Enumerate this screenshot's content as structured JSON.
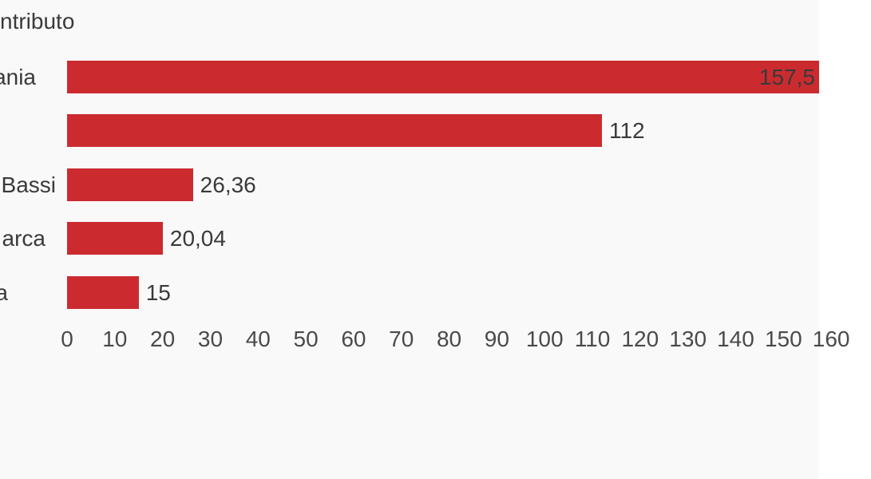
{
  "title": "ntributo",
  "colors": {
    "bar": "#cb2b2f",
    "background": "#f9f9f9",
    "text": "#3a3a3a",
    "tick_text": "#4a4a4a"
  },
  "chart_data": {
    "type": "bar",
    "orientation": "horizontal",
    "title": "ntributo",
    "categories": [
      "ania",
      "",
      "Bassi",
      "arca",
      "a"
    ],
    "values": [
      157.5,
      112,
      26.36,
      20.04,
      15
    ],
    "value_labels": [
      "157,5",
      "112",
      "26,36",
      "20,04",
      "15"
    ],
    "x_ticks": [
      0,
      10,
      20,
      30,
      40,
      50,
      60,
      70,
      80,
      90,
      100,
      110,
      120,
      130,
      140,
      150,
      160
    ],
    "xlim": [
      0,
      160
    ],
    "grid": false,
    "legend": false
  }
}
